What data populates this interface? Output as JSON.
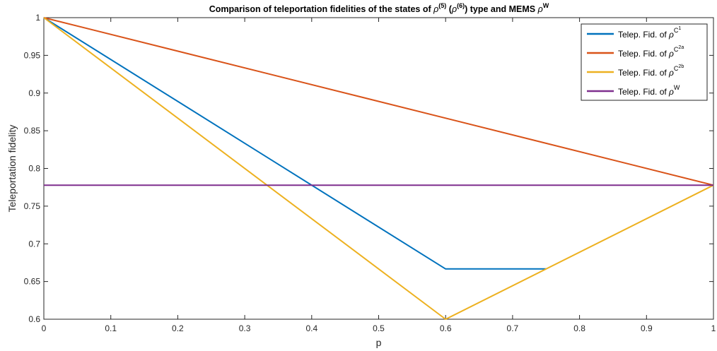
{
  "chart_data": {
    "type": "line",
    "title": {
      "prefix": "Comparison of teleportation fidelities of the states of ",
      "rho": "ρ",
      "sup5": "(5)",
      "paren_open": " (",
      "sup6": "(6)",
      "paren_close": ") type and MEMS ",
      "supW": "W"
    },
    "xlabel": "p",
    "ylabel": "Teleportation fidelity",
    "xlim": [
      0,
      1
    ],
    "ylim": [
      0.6,
      1
    ],
    "xticks": [
      0,
      0.1,
      0.2,
      0.3,
      0.4,
      0.5,
      0.6,
      0.7,
      0.8,
      0.9,
      1
    ],
    "xtick_labels": [
      "0",
      "0.1",
      "0.2",
      "0.3",
      "0.4",
      "0.5",
      "0.6",
      "0.7",
      "0.8",
      "0.9",
      "1"
    ],
    "yticks": [
      0.6,
      0.65,
      0.7,
      0.75,
      0.8,
      0.85,
      0.9,
      0.95,
      1
    ],
    "ytick_labels": [
      "0.6",
      "0.65",
      "0.7",
      "0.75",
      "0.8",
      "0.85",
      "0.9",
      "0.95",
      "1"
    ],
    "grid": false,
    "legend_position": "top-right",
    "series": [
      {
        "name": "Telep. Fid. of ρ^C^1",
        "legend_prefix": "Telep. Fid. of ",
        "rho": "ρ",
        "sup": "C",
        "supsup": "1",
        "color": "#0072BD",
        "x": [
          0,
          0.6,
          0.75
        ],
        "y": [
          1,
          0.6667,
          0.6667
        ]
      },
      {
        "name": "Telep. Fid. of ρ^C^2a",
        "legend_prefix": "Telep. Fid. of ",
        "rho": "ρ",
        "sup": "C",
        "supsup": "2a",
        "color": "#D95319",
        "x": [
          0,
          1
        ],
        "y": [
          1,
          0.7778
        ]
      },
      {
        "name": "Telep. Fid. of ρ^C^2b",
        "legend_prefix": "Telep. Fid. of ",
        "rho": "ρ",
        "sup": "C",
        "supsup": "2b",
        "color": "#EDB120",
        "x": [
          0,
          0.6,
          1
        ],
        "y": [
          1,
          0.6,
          0.7778
        ]
      },
      {
        "name": "Telep. Fid. of ρ^W",
        "legend_prefix": "Telep. Fid. of ",
        "rho": "ρ",
        "sup": "W",
        "supsup": "",
        "color": "#7E2F8E",
        "x": [
          0,
          1
        ],
        "y": [
          0.7778,
          0.7778
        ]
      }
    ]
  }
}
